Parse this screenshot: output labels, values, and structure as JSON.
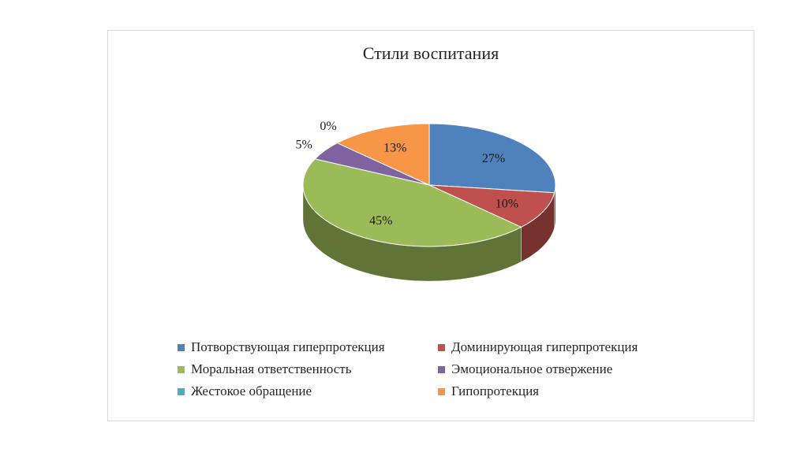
{
  "chart_data": {
    "type": "pie",
    "title": "Стили воспитания",
    "categories": [
      "Потворствующая гиперпротекция",
      "Доминирующая гиперпротекция",
      "Моральная ответственность",
      "Эмоциональное отвержение",
      "Жестокое обращение",
      "Гипопротекция"
    ],
    "values": [
      27,
      10,
      45,
      5,
      0,
      13
    ],
    "labels": [
      "27%",
      "10%",
      "45%",
      "5%",
      "0%",
      "13%"
    ],
    "colors": [
      "#4f81bd",
      "#c0504d",
      "#9bbb59",
      "#8064a2",
      "#4bacc6",
      "#f79646"
    ],
    "legend_position": "bottom",
    "style": "3d"
  }
}
